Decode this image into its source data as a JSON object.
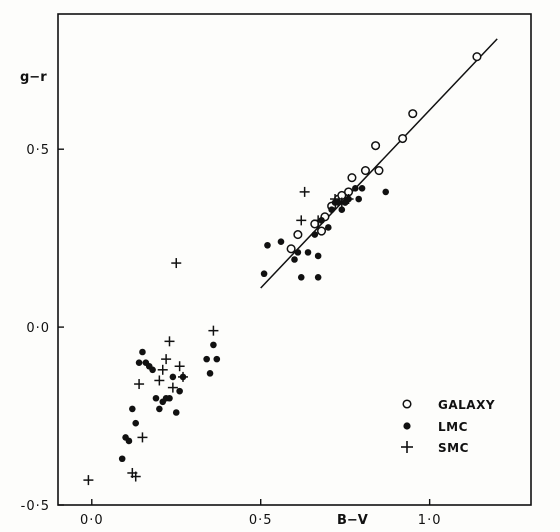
{
  "chart_data": {
    "type": "scatter",
    "xlabel": "B−V",
    "ylabel": "g−r",
    "xlim": [
      -0.1,
      1.3
    ],
    "ylim": [
      -0.5,
      0.88
    ],
    "xticks": [
      {
        "value": 0.0,
        "label": "0·0"
      },
      {
        "value": 0.5,
        "label": "0·5"
      },
      {
        "value": 1.0,
        "label": "1·0"
      }
    ],
    "yticks": [
      {
        "value": -0.5,
        "label": "-0·5"
      },
      {
        "value": 0.0,
        "label": "0·0"
      },
      {
        "value": 0.5,
        "label": "0·5"
      }
    ],
    "grid": false,
    "legend_position": "bottom-right",
    "series": [
      {
        "name": "GALAXY",
        "marker": "open-circle",
        "points": [
          [
            0.59,
            0.22
          ],
          [
            0.61,
            0.26
          ],
          [
            0.66,
            0.29
          ],
          [
            0.68,
            0.27
          ],
          [
            0.69,
            0.31
          ],
          [
            0.71,
            0.34
          ],
          [
            0.73,
            0.36
          ],
          [
            0.74,
            0.37
          ],
          [
            0.76,
            0.38
          ],
          [
            0.77,
            0.42
          ],
          [
            0.81,
            0.44
          ],
          [
            0.84,
            0.51
          ],
          [
            0.85,
            0.44
          ],
          [
            0.92,
            0.53
          ],
          [
            0.95,
            0.6
          ],
          [
            1.14,
            0.76
          ]
        ]
      },
      {
        "name": "LMC",
        "marker": "filled-circle",
        "points": [
          [
            0.09,
            -0.37
          ],
          [
            0.1,
            -0.31
          ],
          [
            0.11,
            -0.32
          ],
          [
            0.12,
            -0.23
          ],
          [
            0.13,
            -0.27
          ],
          [
            0.14,
            -0.1
          ],
          [
            0.15,
            -0.07
          ],
          [
            0.16,
            -0.1
          ],
          [
            0.17,
            -0.11
          ],
          [
            0.18,
            -0.12
          ],
          [
            0.19,
            -0.2
          ],
          [
            0.2,
            -0.23
          ],
          [
            0.21,
            -0.21
          ],
          [
            0.22,
            -0.2
          ],
          [
            0.23,
            -0.2
          ],
          [
            0.24,
            -0.14
          ],
          [
            0.25,
            -0.24
          ],
          [
            0.26,
            -0.18
          ],
          [
            0.27,
            -0.14
          ],
          [
            0.34,
            -0.09
          ],
          [
            0.35,
            -0.13
          ],
          [
            0.36,
            -0.05
          ],
          [
            0.37,
            -0.09
          ],
          [
            0.51,
            0.15
          ],
          [
            0.52,
            0.23
          ],
          [
            0.56,
            0.24
          ],
          [
            0.6,
            0.19
          ],
          [
            0.61,
            0.21
          ],
          [
            0.62,
            0.14
          ],
          [
            0.64,
            0.21
          ],
          [
            0.66,
            0.26
          ],
          [
            0.67,
            0.2
          ],
          [
            0.67,
            0.14
          ],
          [
            0.68,
            0.3
          ],
          [
            0.7,
            0.28
          ],
          [
            0.71,
            0.33
          ],
          [
            0.72,
            0.35
          ],
          [
            0.73,
            0.35
          ],
          [
            0.74,
            0.33
          ],
          [
            0.75,
            0.35
          ],
          [
            0.76,
            0.36
          ],
          [
            0.78,
            0.39
          ],
          [
            0.79,
            0.36
          ],
          [
            0.8,
            0.39
          ],
          [
            0.87,
            0.38
          ]
        ]
      },
      {
        "name": "SMC",
        "marker": "plus",
        "points": [
          [
            -0.01,
            -0.43
          ],
          [
            0.12,
            -0.41
          ],
          [
            0.13,
            -0.42
          ],
          [
            0.14,
            -0.16
          ],
          [
            0.15,
            -0.31
          ],
          [
            0.2,
            -0.15
          ],
          [
            0.21,
            -0.12
          ],
          [
            0.22,
            -0.09
          ],
          [
            0.23,
            -0.04
          ],
          [
            0.24,
            -0.17
          ],
          [
            0.25,
            0.18
          ],
          [
            0.26,
            -0.11
          ],
          [
            0.27,
            -0.14
          ],
          [
            0.36,
            -0.01
          ],
          [
            0.62,
            0.3
          ],
          [
            0.63,
            0.38
          ],
          [
            0.67,
            0.3
          ],
          [
            0.72,
            0.36
          ],
          [
            0.74,
            0.35
          ],
          [
            0.76,
            0.36
          ]
        ]
      }
    ],
    "fit_line": {
      "x1": 0.5,
      "y1": 0.11,
      "x2": 1.2,
      "y2": 0.81
    }
  }
}
